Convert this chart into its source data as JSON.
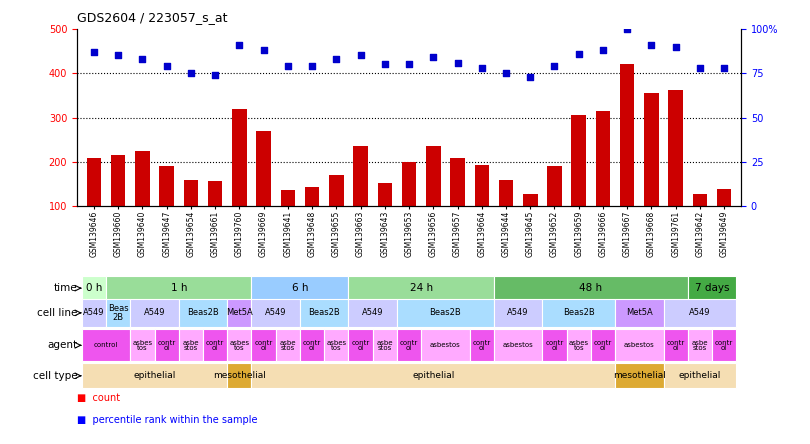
{
  "title": "GDS2604 / 223057_s_at",
  "samples": [
    "GSM139646",
    "GSM139660",
    "GSM139640",
    "GSM139647",
    "GSM139654",
    "GSM139661",
    "GSM139760",
    "GSM139669",
    "GSM139641",
    "GSM139648",
    "GSM139655",
    "GSM139663",
    "GSM139643",
    "GSM139653",
    "GSM139656",
    "GSM139657",
    "GSM139664",
    "GSM139644",
    "GSM139645",
    "GSM139652",
    "GSM139659",
    "GSM139666",
    "GSM139667",
    "GSM139668",
    "GSM139761",
    "GSM139642",
    "GSM139649"
  ],
  "counts": [
    210,
    215,
    225,
    190,
    160,
    158,
    320,
    270,
    138,
    143,
    170,
    237,
    153,
    200,
    237,
    210,
    193,
    160,
    128,
    190,
    305,
    315,
    420,
    355,
    362,
    127,
    140
  ],
  "percentiles": [
    87,
    85,
    83,
    79,
    75,
    74,
    91,
    88,
    79,
    79,
    83,
    85,
    80,
    80,
    84,
    81,
    78,
    75,
    73,
    79,
    86,
    88,
    100,
    91,
    90,
    78,
    78
  ],
  "time_groups": [
    {
      "label": "0 h",
      "start": 0,
      "end": 1,
      "color": "#ccffcc"
    },
    {
      "label": "1 h",
      "start": 1,
      "end": 7,
      "color": "#99dd99"
    },
    {
      "label": "6 h",
      "start": 7,
      "end": 11,
      "color": "#99ccff"
    },
    {
      "label": "24 h",
      "start": 11,
      "end": 17,
      "color": "#99dd99"
    },
    {
      "label": "48 h",
      "start": 17,
      "end": 25,
      "color": "#66bb66"
    },
    {
      "label": "7 days",
      "start": 25,
      "end": 27,
      "color": "#44aa44"
    }
  ],
  "cell_line_groups": [
    {
      "label": "A549",
      "start": 0,
      "end": 1,
      "color": "#ccccff"
    },
    {
      "label": "Beas\n2B",
      "start": 1,
      "end": 2,
      "color": "#aaddff"
    },
    {
      "label": "A549",
      "start": 2,
      "end": 4,
      "color": "#ccccff"
    },
    {
      "label": "Beas2B",
      "start": 4,
      "end": 6,
      "color": "#aaddff"
    },
    {
      "label": "Met5A",
      "start": 6,
      "end": 7,
      "color": "#cc99ff"
    },
    {
      "label": "A549",
      "start": 7,
      "end": 9,
      "color": "#ccccff"
    },
    {
      "label": "Beas2B",
      "start": 9,
      "end": 11,
      "color": "#aaddff"
    },
    {
      "label": "A549",
      "start": 11,
      "end": 13,
      "color": "#ccccff"
    },
    {
      "label": "Beas2B",
      "start": 13,
      "end": 17,
      "color": "#aaddff"
    },
    {
      "label": "A549",
      "start": 17,
      "end": 19,
      "color": "#ccccff"
    },
    {
      "label": "Beas2B",
      "start": 19,
      "end": 22,
      "color": "#aaddff"
    },
    {
      "label": "Met5A",
      "start": 22,
      "end": 24,
      "color": "#cc99ff"
    },
    {
      "label": "A549",
      "start": 24,
      "end": 27,
      "color": "#ccccff"
    }
  ],
  "agent_groups": [
    {
      "label": "control",
      "start": 0,
      "end": 2,
      "color": "#ee55ee"
    },
    {
      "label": "asbes\ntos",
      "start": 2,
      "end": 3,
      "color": "#ffaaff"
    },
    {
      "label": "contr\nol",
      "start": 3,
      "end": 4,
      "color": "#ee55ee"
    },
    {
      "label": "asbe\nstos",
      "start": 4,
      "end": 5,
      "color": "#ffaaff"
    },
    {
      "label": "contr\nol",
      "start": 5,
      "end": 6,
      "color": "#ee55ee"
    },
    {
      "label": "asbes\ntos",
      "start": 6,
      "end": 7,
      "color": "#ffaaff"
    },
    {
      "label": "contr\nol",
      "start": 7,
      "end": 8,
      "color": "#ee55ee"
    },
    {
      "label": "asbe\nstos",
      "start": 8,
      "end": 9,
      "color": "#ffaaff"
    },
    {
      "label": "contr\nol",
      "start": 9,
      "end": 10,
      "color": "#ee55ee"
    },
    {
      "label": "asbes\ntos",
      "start": 10,
      "end": 11,
      "color": "#ffaaff"
    },
    {
      "label": "contr\nol",
      "start": 11,
      "end": 12,
      "color": "#ee55ee"
    },
    {
      "label": "asbe\nstos",
      "start": 12,
      "end": 13,
      "color": "#ffaaff"
    },
    {
      "label": "contr\nol",
      "start": 13,
      "end": 14,
      "color": "#ee55ee"
    },
    {
      "label": "asbestos",
      "start": 14,
      "end": 16,
      "color": "#ffaaff"
    },
    {
      "label": "contr\nol",
      "start": 16,
      "end": 17,
      "color": "#ee55ee"
    },
    {
      "label": "asbestos",
      "start": 17,
      "end": 19,
      "color": "#ffaaff"
    },
    {
      "label": "contr\nol",
      "start": 19,
      "end": 20,
      "color": "#ee55ee"
    },
    {
      "label": "asbes\ntos",
      "start": 20,
      "end": 21,
      "color": "#ffaaff"
    },
    {
      "label": "contr\nol",
      "start": 21,
      "end": 22,
      "color": "#ee55ee"
    },
    {
      "label": "asbestos",
      "start": 22,
      "end": 24,
      "color": "#ffaaff"
    },
    {
      "label": "contr\nol",
      "start": 24,
      "end": 25,
      "color": "#ee55ee"
    },
    {
      "label": "asbe\nstos",
      "start": 25,
      "end": 26,
      "color": "#ffaaff"
    },
    {
      "label": "contr\nol",
      "start": 26,
      "end": 27,
      "color": "#ee55ee"
    }
  ],
  "cell_type_groups": [
    {
      "label": "epithelial",
      "start": 0,
      "end": 6,
      "color": "#f5deb3"
    },
    {
      "label": "mesothelial",
      "start": 6,
      "end": 7,
      "color": "#ddaa33"
    },
    {
      "label": "epithelial",
      "start": 7,
      "end": 22,
      "color": "#f5deb3"
    },
    {
      "label": "mesothelial",
      "start": 22,
      "end": 24,
      "color": "#ddaa33"
    },
    {
      "label": "epithelial",
      "start": 24,
      "end": 27,
      "color": "#f5deb3"
    }
  ],
  "bar_color": "#cc0000",
  "dot_color": "#0000cc",
  "ylim_left": [
    100,
    500
  ],
  "ylim_right": [
    0,
    100
  ],
  "yticks_left": [
    100,
    200,
    300,
    400,
    500
  ],
  "yticks_right": [
    0,
    25,
    50,
    75,
    100
  ],
  "bg_color": "#ffffff"
}
